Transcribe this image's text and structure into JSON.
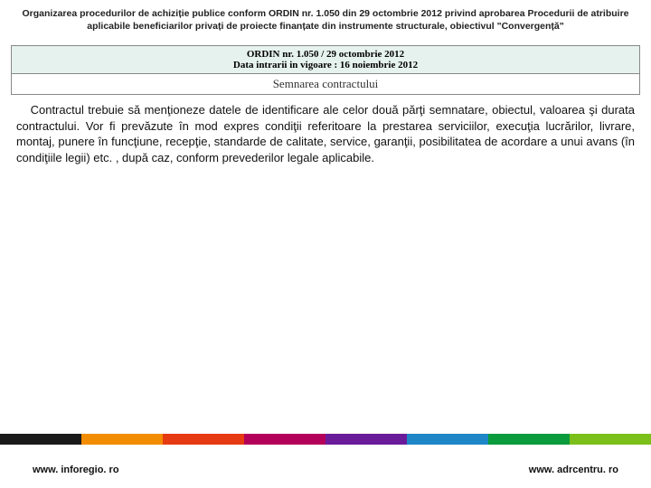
{
  "header": {
    "title": "Organizarea procedurilor de achiziție publice conform ORDIN nr. 1.050 din 29 octombrie 2012 privind aprobarea Procedurii de atribuire aplicabile beneficiarilor privați de proiecte finanțate din instrumente structurale, obiectivul \"Convergență\""
  },
  "ordin": {
    "line1": "ORDIN nr. 1.050 / 29 octombrie 2012",
    "line2": "Data intrarii in vigoare : 16 noiembrie 2012",
    "subtitle": "Semnarea contractului"
  },
  "body": {
    "para1": "Contractul trebuie să menţioneze datele de identificare ale celor două părţi semnatare, obiectul, valoarea şi durata contractului. Vor fi prevăzute în mod expres condiţii referitoare la prestarea serviciilor, execuţia lucrărilor, livrare, montaj, punere în funcţiune, recepţie, standarde de calitate, service, garanţii, posibilitatea de acordare a unui avans (în condiţiile legii) etc. , după caz, conform prevederilor legale aplicabile."
  },
  "colorbar": {
    "c1": "#1a1a1a",
    "c2": "#f28c00",
    "c3": "#e63a12",
    "c4": "#b3005a",
    "c5": "#6a1b9a",
    "c6": "#1f86c7",
    "c7": "#0a9b3d",
    "c8": "#7bbf1a"
  },
  "footer": {
    "left": "www. inforegio. ro",
    "right": "www. adrcentru. ro"
  }
}
